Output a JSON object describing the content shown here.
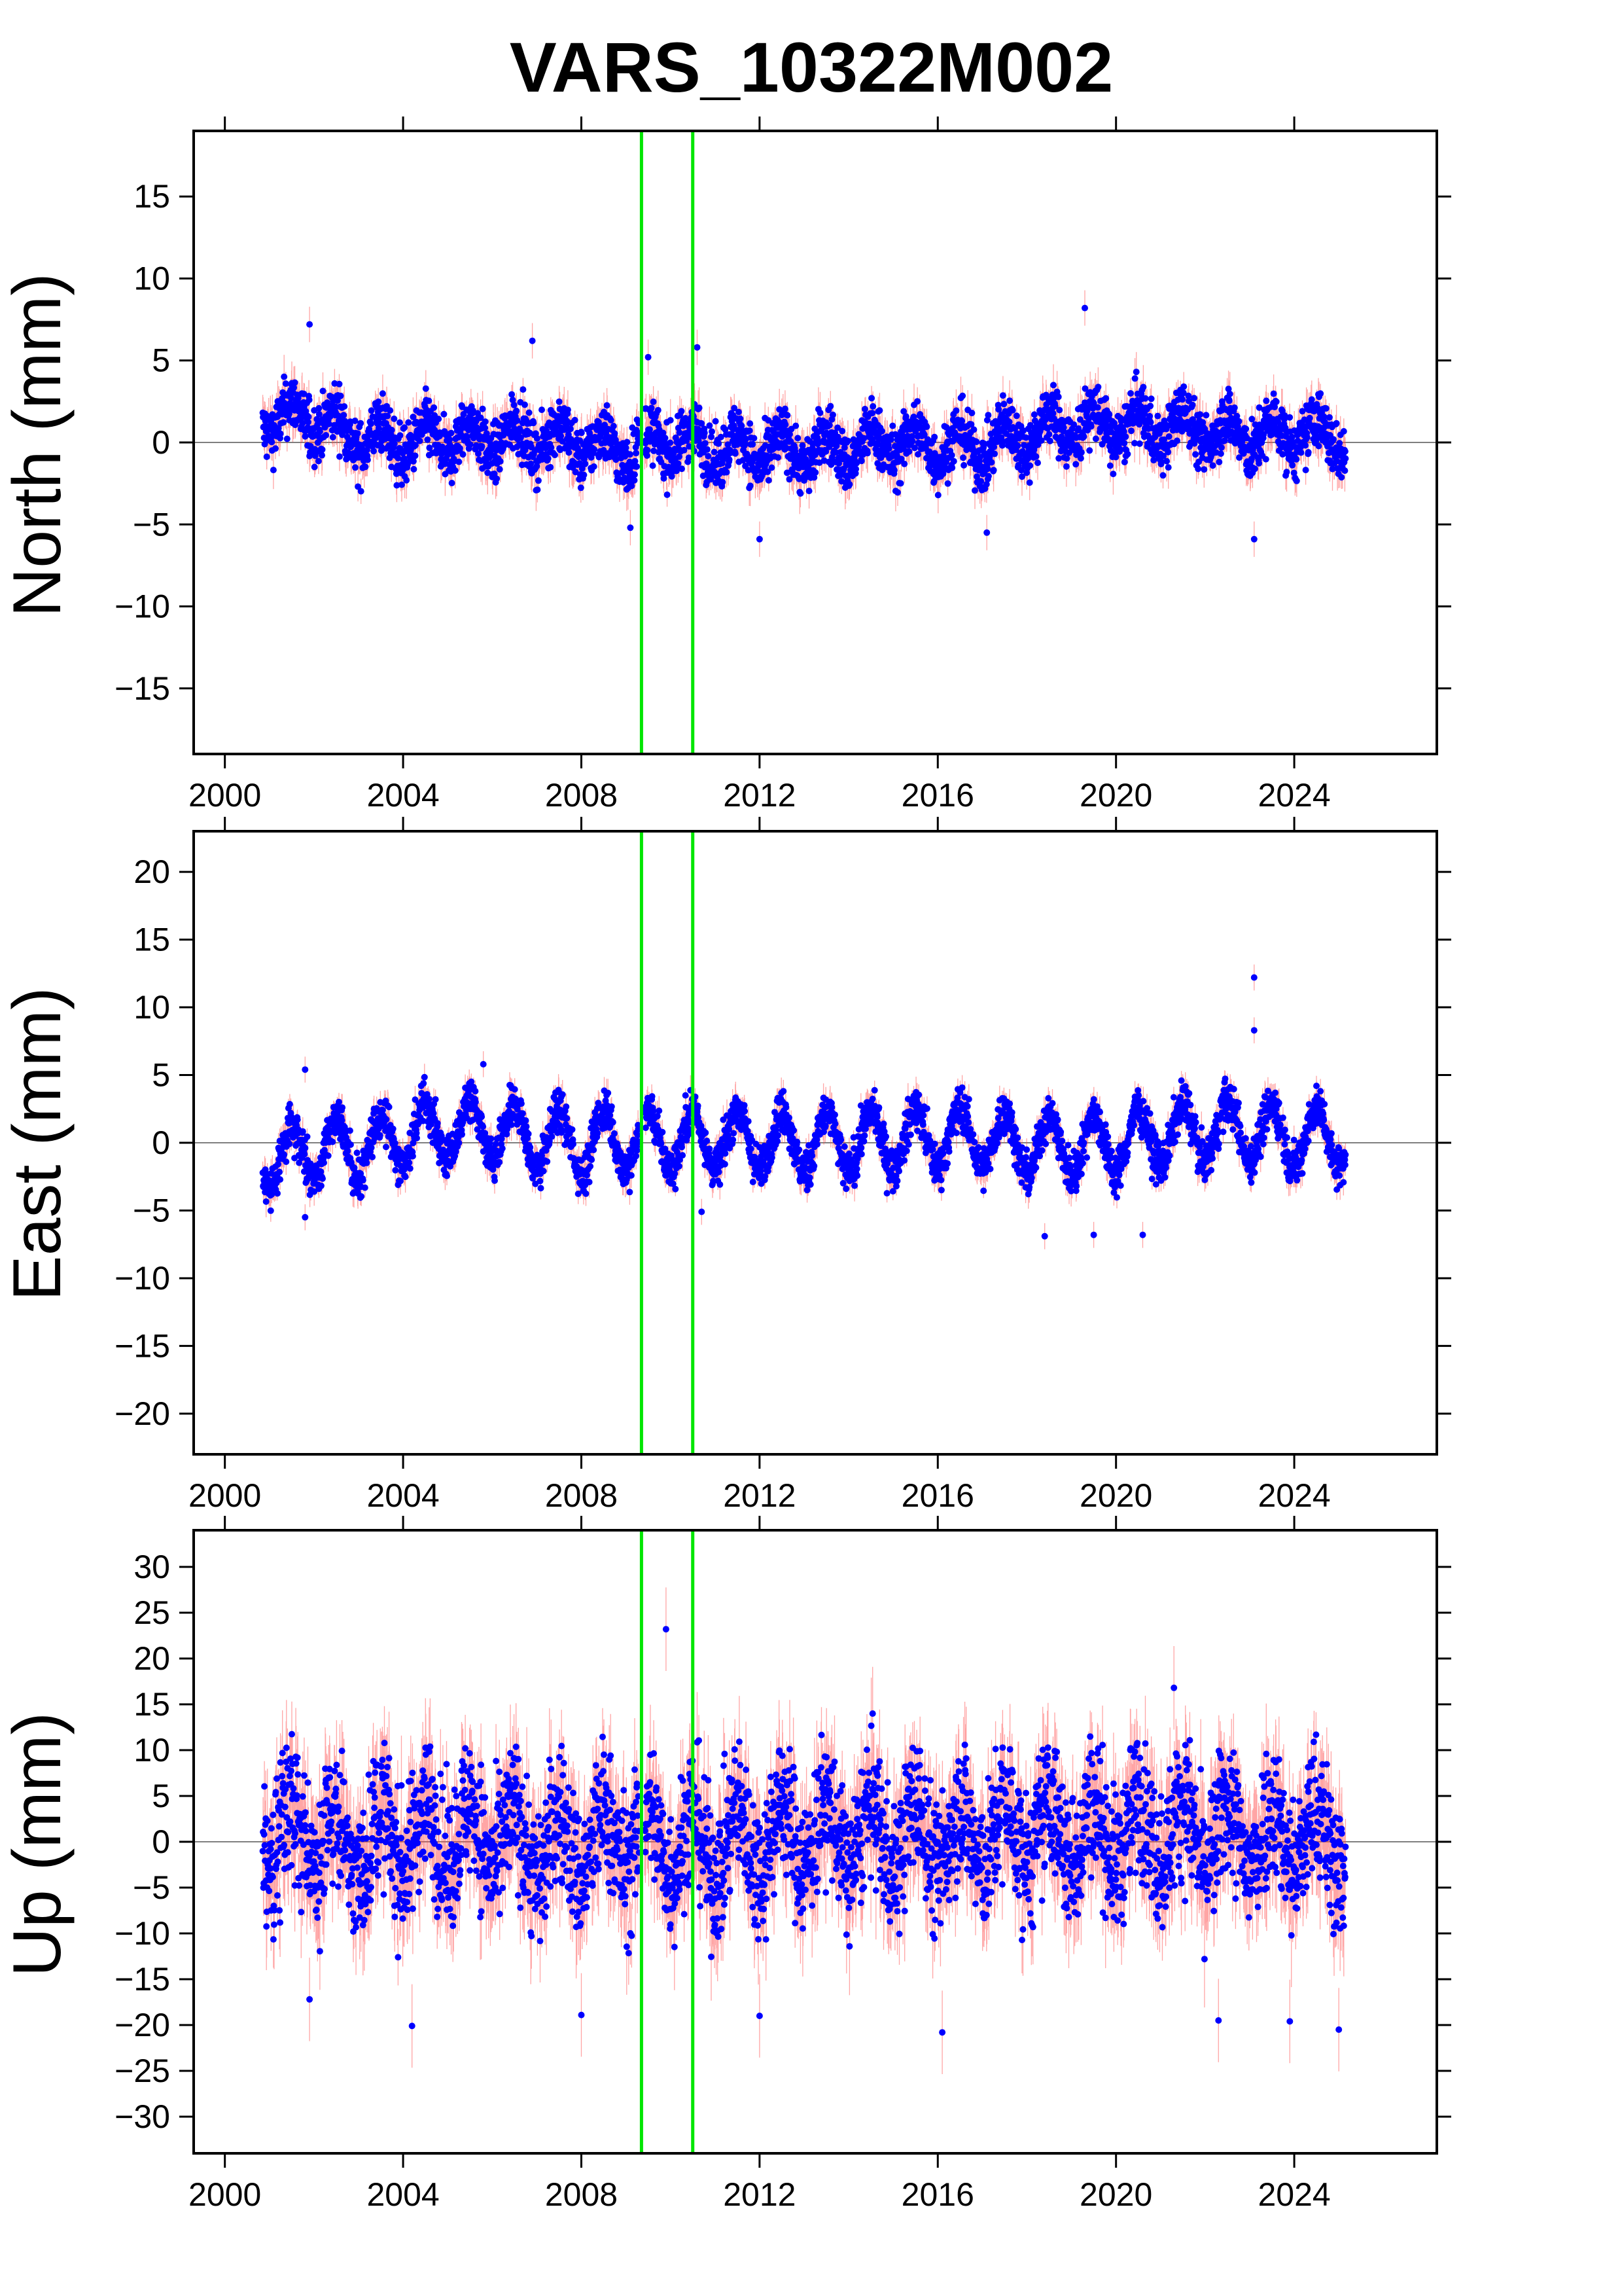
{
  "title": "VARS_10322M002",
  "colors": {
    "points": "#0000ff",
    "errorbars": "#ff4b4b",
    "events": "#00e600",
    "zero_line": "#555555",
    "frame": "#000000"
  },
  "chart_data": [
    {
      "type": "scatter",
      "component": "North",
      "ylabel": "North (mm)",
      "xlim": [
        1999.3,
        2027.2
      ],
      "ylim": [
        -19,
        19
      ],
      "xticks": [
        "2000",
        "2004",
        "2008",
        "2012",
        "2016",
        "2020",
        "2024"
      ],
      "yticks": [
        "15",
        "10",
        "5",
        "0",
        "−5",
        "−10",
        "−15"
      ],
      "event_lines_x": [
        2009.35,
        2010.5
      ],
      "data_span": [
        2000.85,
        2025.15
      ],
      "series_profile": {
        "years": [
          2001,
          2002,
          2003,
          2004,
          2005,
          2006,
          2007,
          2008,
          2009,
          2010,
          2011,
          2012,
          2013,
          2014,
          2015,
          2016,
          2017,
          2018,
          2019,
          2020,
          2021,
          2022,
          2023,
          2024,
          2025
        ],
        "mean": [
          1.5,
          1.5,
          0.3,
          0.0,
          0.2,
          0.2,
          0.3,
          0.0,
          -0.5,
          0.2,
          -0.3,
          -0.5,
          -0.5,
          -0.4,
          0.0,
          -0.2,
          -0.3,
          0.6,
          1.0,
          1.0,
          0.9,
          0.8,
          0.3,
          0.5,
          0.4
        ],
        "seasonal_amplitude": 1.0,
        "noise_sd": 0.9
      },
      "outliers": [
        {
          "x": 2001.9,
          "y": 7.2
        },
        {
          "x": 2006.9,
          "y": 6.2
        },
        {
          "x": 2009.5,
          "y": 5.2
        },
        {
          "x": 2010.6,
          "y": 5.8
        },
        {
          "x": 2019.3,
          "y": 8.2
        },
        {
          "x": 2023.1,
          "y": -5.9
        },
        {
          "x": 2012.0,
          "y": -5.9
        },
        {
          "x": 2017.1,
          "y": -5.5
        },
        {
          "x": 2009.1,
          "y": -5.2
        }
      ]
    },
    {
      "type": "scatter",
      "component": "East",
      "ylabel": "East (mm)",
      "xlim": [
        1999.3,
        2027.2
      ],
      "ylim": [
        -23,
        23
      ],
      "xticks": [
        "2000",
        "2004",
        "2008",
        "2012",
        "2016",
        "2020",
        "2024"
      ],
      "yticks": [
        "20",
        "15",
        "10",
        "5",
        "0",
        "−5",
        "−10",
        "−15",
        "−20"
      ],
      "event_lines_x": [
        2009.35,
        2010.5
      ],
      "data_span": [
        2000.85,
        2025.15
      ],
      "series_profile": {
        "years": [
          2001,
          2002,
          2003,
          2004,
          2005,
          2006,
          2007,
          2008,
          2009,
          2010,
          2011,
          2012,
          2013,
          2014,
          2015,
          2016,
          2017,
          2018,
          2019,
          2020,
          2021,
          2022,
          2023,
          2024,
          2025
        ],
        "mean": [
          -1.5,
          -0.5,
          -0.5,
          0.5,
          1.0,
          0.8,
          0.3,
          0.0,
          0.2,
          0.3,
          0.3,
          0.2,
          0.0,
          0.0,
          0.2,
          0.5,
          0.3,
          -0.2,
          -0.2,
          0.0,
          0.6,
          0.8,
          1.0,
          0.3,
          0.6
        ],
        "seasonal_amplitude": 2.2,
        "noise_sd": 0.8
      },
      "outliers": [
        {
          "x": 2023.1,
          "y": 12.2
        },
        {
          "x": 2023.1,
          "y": 8.3
        },
        {
          "x": 2005.8,
          "y": 5.8
        },
        {
          "x": 2018.4,
          "y": -6.9
        },
        {
          "x": 2019.5,
          "y": -6.8
        },
        {
          "x": 2020.6,
          "y": -6.8
        },
        {
          "x": 2010.7,
          "y": -5.1
        },
        {
          "x": 2001.8,
          "y": -5.5
        },
        {
          "x": 2001.8,
          "y": 5.4
        }
      ]
    },
    {
      "type": "scatter",
      "component": "Up",
      "ylabel": "Up (mm)",
      "xlim": [
        1999.3,
        2027.2
      ],
      "ylim": [
        -34,
        34
      ],
      "xticks": [
        "2000",
        "2004",
        "2008",
        "2012",
        "2016",
        "2020",
        "2024"
      ],
      "yticks": [
        "30",
        "25",
        "20",
        "15",
        "10",
        "5",
        "0",
        "−5",
        "−10",
        "−15",
        "−20",
        "−25",
        "−30"
      ],
      "event_lines_x": [
        2009.35,
        2010.5
      ],
      "data_span": [
        2000.85,
        2025.15
      ],
      "series_profile": {
        "years": [
          2001,
          2002,
          2003,
          2004,
          2005,
          2006,
          2007,
          2008,
          2009,
          2010,
          2011,
          2012,
          2013,
          2014,
          2015,
          2016,
          2017,
          2018,
          2019,
          2020,
          2021,
          2022,
          2023,
          2024,
          2025
        ],
        "mean": [
          0.5,
          0.5,
          -0.5,
          0.5,
          1.0,
          0.5,
          -0.5,
          -0.5,
          0.5,
          0.0,
          -0.5,
          0.5,
          1.0,
          0.5,
          0.5,
          0.5,
          0.5,
          1.0,
          1.0,
          1.0,
          1.5,
          0.5,
          0.5,
          0.5,
          0.0
        ],
        "seasonal_amplitude": 3.5,
        "noise_sd": 3.8
      },
      "outliers": [
        {
          "x": 2009.9,
          "y": 23.2
        },
        {
          "x": 2021.3,
          "y": 16.8
        },
        {
          "x": 2004.2,
          "y": -20.1
        },
        {
          "x": 2016.1,
          "y": -20.8
        },
        {
          "x": 2022.3,
          "y": -19.5
        },
        {
          "x": 2023.9,
          "y": -19.6
        },
        {
          "x": 2025.0,
          "y": -20.5
        },
        {
          "x": 2012.0,
          "y": -19.0
        },
        {
          "x": 2008.0,
          "y": -18.9
        },
        {
          "x": 2001.9,
          "y": -17.2
        }
      ]
    }
  ]
}
